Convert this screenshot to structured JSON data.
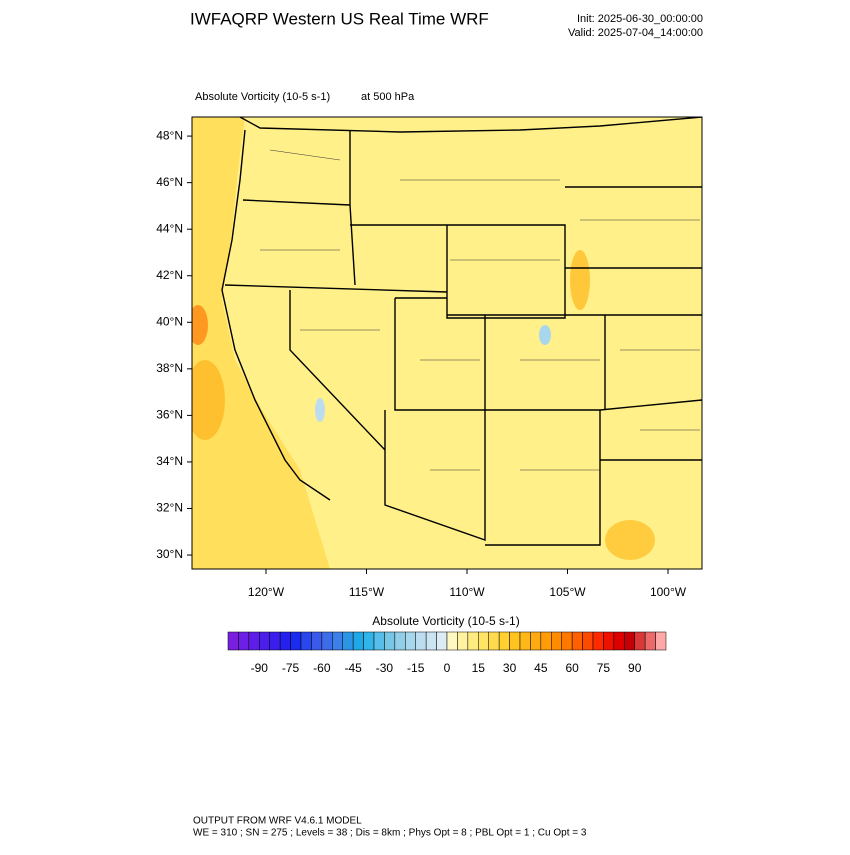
{
  "header": {
    "title": "IWFAQRP Western US Real Time WRF",
    "init": "Init: 2025-06-30_00:00:00",
    "valid": "Valid: 2025-07-04_14:00:00"
  },
  "plot": {
    "field": "Absolute Vorticity   (10-5 s-1)",
    "level": "at   500 hPa",
    "lat_range": [
      29.4,
      48.82
    ],
    "lon_range": [
      -123.68,
      -98.31
    ],
    "lat_ticks": [
      {
        "value": 30,
        "label": "30°N"
      },
      {
        "value": 32,
        "label": "32°N"
      },
      {
        "value": 34,
        "label": "34°N"
      },
      {
        "value": 36,
        "label": "36°N"
      },
      {
        "value": 38,
        "label": "38°N"
      },
      {
        "value": 40,
        "label": "40°N"
      },
      {
        "value": 42,
        "label": "42°N"
      },
      {
        "value": 44,
        "label": "44°N"
      },
      {
        "value": 46,
        "label": "46°N"
      },
      {
        "value": 48,
        "label": "48°N"
      }
    ],
    "lon_ticks": [
      {
        "value": -120,
        "label": "120°W"
      },
      {
        "value": -115,
        "label": "115°W"
      },
      {
        "value": -110,
        "label": "110°W"
      },
      {
        "value": -105,
        "label": "105°W"
      },
      {
        "value": -100,
        "label": "100°W"
      }
    ]
  },
  "colorbar": {
    "title": "Absolute Vorticity  (10-5 s-1)",
    "range": [
      -105,
      105
    ],
    "ticks": [
      -90,
      -75,
      -60,
      -45,
      -30,
      -15,
      0,
      15,
      30,
      45,
      60,
      75,
      90
    ],
    "colors": [
      "#7a1fe0",
      "#6e1fe6",
      "#5e1ee8",
      "#4c1eea",
      "#3a1eec",
      "#2620ee",
      "#1a2cf0",
      "#2a46ee",
      "#3a5aec",
      "#3c6cea",
      "#3a80e8",
      "#2c96e6",
      "#20a8e6",
      "#30b4ea",
      "#56bee8",
      "#78c6e6",
      "#92cee8",
      "#a8d6ec",
      "#bcdcf0",
      "#cce4f2",
      "#dcecf4",
      "#fff8c0",
      "#fff2a0",
      "#ffec80",
      "#ffe466",
      "#ffda4c",
      "#ffd030",
      "#ffc420",
      "#ffb818",
      "#ffaa10",
      "#ff9c08",
      "#ff8c00",
      "#ff7800",
      "#ff6000",
      "#ff4800",
      "#ff2a00",
      "#f01000",
      "#dc0000",
      "#c40008",
      "#d83838",
      "#ec6a6a",
      "#ffa8a8"
    ]
  },
  "footer": {
    "line1": "OUTPUT FROM WRF V4.6.1 MODEL",
    "line2": "WE = 310 ; SN = 275 ; Levels = 38 ; Dis = 8km ; Phys Opt = 8 ; PBL Opt = 1 ; Cu Opt = 3"
  }
}
